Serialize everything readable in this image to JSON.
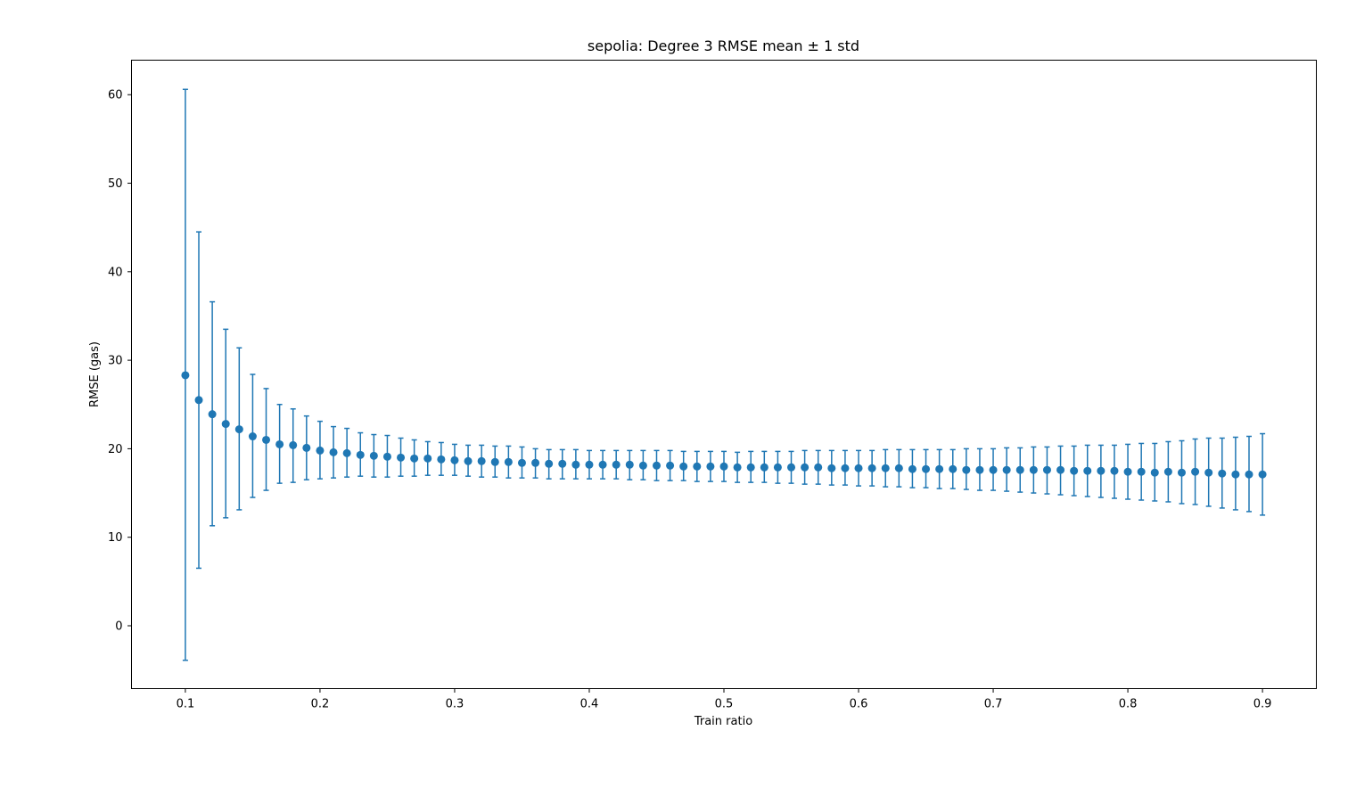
{
  "chart_data": {
    "type": "scatter",
    "title": "sepolia: Degree 3 RMSE mean ± 1 std",
    "xlabel": "Train ratio",
    "ylabel": "RMSE (gas)",
    "xlim": [
      0.06,
      0.94
    ],
    "ylim": [
      -7.1,
      63.9
    ],
    "xticks": [
      0.1,
      0.2,
      0.3,
      0.4,
      0.5,
      0.6,
      0.7,
      0.8,
      0.9
    ],
    "xtick_labels": [
      "0.1",
      "0.2",
      "0.3",
      "0.4",
      "0.5",
      "0.6",
      "0.7",
      "0.8",
      "0.9"
    ],
    "yticks": [
      0,
      10,
      20,
      30,
      40,
      50,
      60
    ],
    "ytick_labels": [
      "0",
      "10",
      "20",
      "30",
      "40",
      "50",
      "60"
    ],
    "grid": false,
    "legend": false,
    "series": [
      {
        "color": "#1f77b4",
        "marker": "circle",
        "error_bars": "± 1 std",
        "x": [
          0.1,
          0.11,
          0.12,
          0.13,
          0.14,
          0.15,
          0.16,
          0.17,
          0.18,
          0.19,
          0.2,
          0.21,
          0.22,
          0.23,
          0.24,
          0.25,
          0.26,
          0.27,
          0.28,
          0.29,
          0.3,
          0.31,
          0.32,
          0.33,
          0.34,
          0.35,
          0.36,
          0.37,
          0.38,
          0.39,
          0.4,
          0.41,
          0.42,
          0.43,
          0.44,
          0.45,
          0.46,
          0.47,
          0.48,
          0.49,
          0.5,
          0.51,
          0.52,
          0.53,
          0.54,
          0.55,
          0.56,
          0.57,
          0.58,
          0.59,
          0.6,
          0.61,
          0.62,
          0.63,
          0.64,
          0.65,
          0.66,
          0.67,
          0.68,
          0.69,
          0.7,
          0.71,
          0.72,
          0.73,
          0.74,
          0.75,
          0.76,
          0.77,
          0.78,
          0.79,
          0.8,
          0.81,
          0.82,
          0.83,
          0.84,
          0.85,
          0.86,
          0.87,
          0.88,
          0.89,
          0.9
        ],
        "mean": [
          28.3,
          25.5,
          23.9,
          22.8,
          22.2,
          21.4,
          21.0,
          20.5,
          20.4,
          20.1,
          19.8,
          19.6,
          19.5,
          19.3,
          19.2,
          19.1,
          19.0,
          18.9,
          18.9,
          18.8,
          18.7,
          18.6,
          18.6,
          18.5,
          18.5,
          18.4,
          18.4,
          18.3,
          18.3,
          18.2,
          18.2,
          18.2,
          18.2,
          18.2,
          18.1,
          18.1,
          18.1,
          18.0,
          18.0,
          18.0,
          18.0,
          17.9,
          17.9,
          17.9,
          17.9,
          17.9,
          17.9,
          17.9,
          17.8,
          17.8,
          17.8,
          17.8,
          17.8,
          17.8,
          17.7,
          17.7,
          17.7,
          17.7,
          17.6,
          17.6,
          17.6,
          17.6,
          17.6,
          17.6,
          17.6,
          17.6,
          17.5,
          17.5,
          17.5,
          17.5,
          17.4,
          17.4,
          17.3,
          17.4,
          17.3,
          17.4,
          17.3,
          17.2,
          17.1,
          17.1,
          17.1
        ],
        "lower": [
          -3.9,
          6.5,
          11.3,
          12.2,
          13.1,
          14.5,
          15.3,
          16.1,
          16.2,
          16.5,
          16.6,
          16.7,
          16.8,
          16.9,
          16.8,
          16.8,
          16.9,
          16.9,
          17.0,
          17.0,
          17.0,
          16.9,
          16.8,
          16.8,
          16.7,
          16.7,
          16.7,
          16.6,
          16.6,
          16.6,
          16.6,
          16.6,
          16.6,
          16.5,
          16.5,
          16.4,
          16.4,
          16.4,
          16.3,
          16.3,
          16.3,
          16.2,
          16.2,
          16.2,
          16.1,
          16.1,
          16.0,
          16.0,
          15.9,
          15.9,
          15.8,
          15.8,
          15.7,
          15.7,
          15.6,
          15.6,
          15.5,
          15.5,
          15.4,
          15.3,
          15.3,
          15.2,
          15.1,
          15.0,
          14.9,
          14.8,
          14.7,
          14.6,
          14.5,
          14.4,
          14.3,
          14.2,
          14.1,
          14.0,
          13.8,
          13.7,
          13.5,
          13.3,
          13.1,
          12.9,
          12.5
        ],
        "upper": [
          60.6,
          44.5,
          36.6,
          33.5,
          31.4,
          28.4,
          26.8,
          25.0,
          24.5,
          23.7,
          23.1,
          22.5,
          22.3,
          21.8,
          21.6,
          21.5,
          21.2,
          21.0,
          20.8,
          20.7,
          20.5,
          20.4,
          20.4,
          20.3,
          20.3,
          20.2,
          20.0,
          19.9,
          19.9,
          19.9,
          19.8,
          19.8,
          19.8,
          19.8,
          19.8,
          19.8,
          19.8,
          19.7,
          19.7,
          19.7,
          19.7,
          19.6,
          19.7,
          19.7,
          19.7,
          19.7,
          19.8,
          19.8,
          19.8,
          19.8,
          19.8,
          19.8,
          19.9,
          19.9,
          19.9,
          19.9,
          19.9,
          19.9,
          20.0,
          20.0,
          20.0,
          20.1,
          20.1,
          20.2,
          20.2,
          20.3,
          20.3,
          20.4,
          20.4,
          20.4,
          20.5,
          20.6,
          20.6,
          20.8,
          20.9,
          21.1,
          21.2,
          21.2,
          21.3,
          21.4,
          21.7
        ]
      }
    ]
  }
}
